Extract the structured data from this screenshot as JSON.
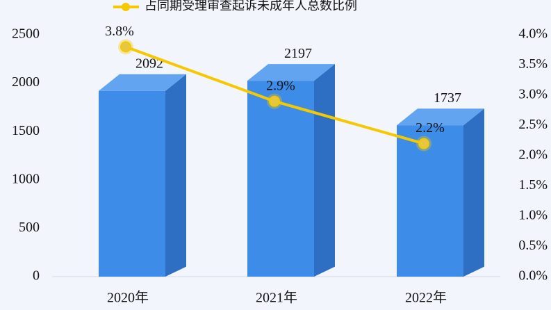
{
  "chart_data": {
    "type": "bar",
    "categories": [
      "2020年",
      "2021年",
      "2022年"
    ],
    "series": [
      {
        "color": "#3d8de8",
        "values": [
          2092,
          2197,
          1737
        ]
      },
      {
        "name": "占同期受理审查起诉未成年人总数比例",
        "type": "line",
        "axis": "y2",
        "color": "#f5c800",
        "values": [
          3.8,
          2.9,
          2.2
        ],
        "value_labels": [
          "3.8%",
          "2.9%",
          "2.2%"
        ]
      }
    ],
    "ylim": [
      0,
      2500
    ],
    "yticks": [
      0,
      500,
      1000,
      1500,
      2000,
      2500
    ],
    "y2lim": [
      0,
      4
    ],
    "y2ticks": [
      {
        "value": 0,
        "label": "0.0%"
      },
      {
        "value": 0.5,
        "label": "0.5%"
      },
      {
        "value": 1,
        "label": "1.0%"
      },
      {
        "value": 1.5,
        "label": "1.5%"
      },
      {
        "value": 2,
        "label": "2.0%"
      },
      {
        "value": 2.5,
        "label": "2.5%"
      },
      {
        "value": 3,
        "label": "3.0%"
      },
      {
        "value": 3.5,
        "label": "3.5%"
      },
      {
        "value": 4,
        "label": "4.0%"
      }
    ],
    "legend": "top"
  }
}
